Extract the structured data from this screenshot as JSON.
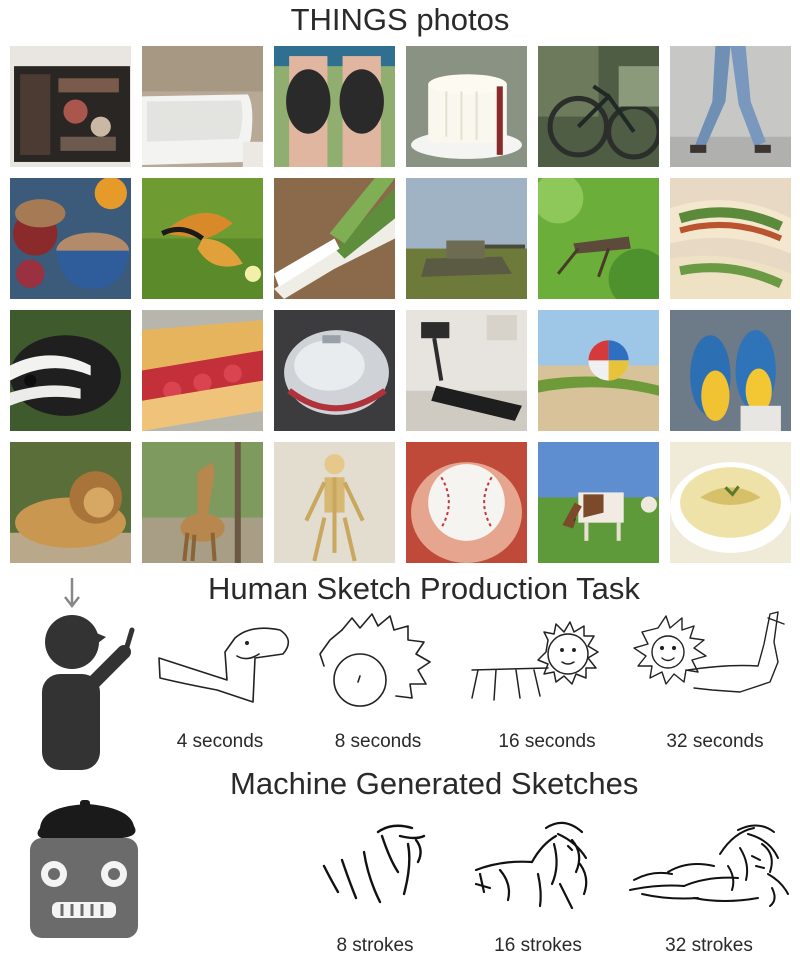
{
  "photos_title": "THINGS photos",
  "human_title": "Human Sketch Production Task",
  "machine_title": "Machine Generated Sketches",
  "human_captions": [
    "4 seconds",
    "8 seconds",
    "16 seconds",
    "32 seconds"
  ],
  "machine_captions": [
    "8 strokes",
    "16 strokes",
    "32 strokes"
  ],
  "photos": [
    {
      "subject": "open book"
    },
    {
      "subject": "bathtub"
    },
    {
      "subject": "knee pads"
    },
    {
      "subject": "cake"
    },
    {
      "subject": "bicycle"
    },
    {
      "subject": "walking legs"
    },
    {
      "subject": "bowls of porridge"
    },
    {
      "subject": "butterfly"
    },
    {
      "subject": "leeks"
    },
    {
      "subject": "tank"
    },
    {
      "subject": "grasshopper"
    },
    {
      "subject": "wraps"
    },
    {
      "subject": "badger"
    },
    {
      "subject": "pastry with strawberries"
    },
    {
      "subject": "computer mouse"
    },
    {
      "subject": "treadmill"
    },
    {
      "subject": "beach ball"
    },
    {
      "subject": "parrots"
    },
    {
      "subject": "lion"
    },
    {
      "subject": "giraffe"
    },
    {
      "subject": "skeleton"
    },
    {
      "subject": "baseball"
    },
    {
      "subject": "cow"
    },
    {
      "subject": "hummus"
    }
  ]
}
